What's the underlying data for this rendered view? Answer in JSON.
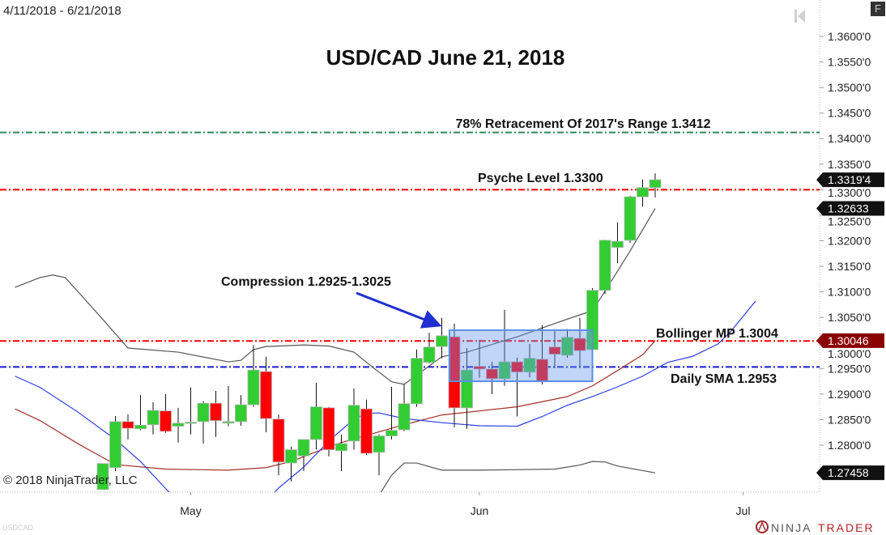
{
  "header": {
    "date_range": "4/11/2018 - 6/21/2018",
    "f_button": "F",
    "instrument_watermark": "USDCAD"
  },
  "footer": {
    "copyright": "© 2018 NinjaTrader, LLC",
    "logo_text_left": "NINJA",
    "logo_text_right": "TRADER"
  },
  "chart_data": {
    "type": "candlestick",
    "title": "USD/CAD June 21, 2018",
    "x_start_date": "2018-04-11",
    "x_tick_labels": [
      {
        "date": "2018-05-01",
        "label": "May"
      },
      {
        "date": "2018-06-01",
        "label": "Jun"
      },
      {
        "date": "2018-07-02",
        "label": "Jul"
      }
    ],
    "ylim": [
      1.27,
      1.365
    ],
    "y_ticks": [
      {
        "value": 1.36,
        "label": "1.3600'0"
      },
      {
        "value": 1.355,
        "label": "1.3550'0"
      },
      {
        "value": 1.35,
        "label": "1.3500'0"
      },
      {
        "value": 1.345,
        "label": "1.3450'0"
      },
      {
        "value": 1.34,
        "label": "1.3400'0"
      },
      {
        "value": 1.335,
        "label": "1.3350'0"
      },
      {
        "value": 1.33,
        "label": "1.3300'0"
      },
      {
        "value": 1.325,
        "label": "1.3250'0"
      },
      {
        "value": 1.32,
        "label": "1.3200'0"
      },
      {
        "value": 1.315,
        "label": "1.3150'0"
      },
      {
        "value": 1.31,
        "label": "1.3100'0"
      },
      {
        "value": 1.305,
        "label": "1.3050'0"
      },
      {
        "value": 1.3,
        "label": "1.3000'0"
      },
      {
        "value": 1.295,
        "label": "1.2950'0"
      },
      {
        "value": 1.29,
        "label": "1.2900'0"
      },
      {
        "value": 1.285,
        "label": "1.2850'0"
      },
      {
        "value": 1.28,
        "label": "1.2800'0"
      }
    ],
    "colors": {
      "up": "#32cd32",
      "down": "#ff0000",
      "box_fill": "#6495ed",
      "box_stroke": "#5b8fe6"
    },
    "candle_columns": [
      "date",
      "open",
      "high",
      "low",
      "close"
    ],
    "candles": [
      [
        "2018-04-20",
        1.2713,
        1.2764,
        1.2713,
        1.2764
      ],
      [
        "2018-04-23",
        1.2756,
        1.2857,
        1.2749,
        1.2846
      ],
      [
        "2018-04-24",
        1.2846,
        1.286,
        1.2811,
        1.2833
      ],
      [
        "2018-04-25",
        1.2832,
        1.2898,
        1.2829,
        1.2839
      ],
      [
        "2018-04-26",
        1.284,
        1.2884,
        1.2821,
        1.2868
      ],
      [
        "2018-04-27",
        1.2867,
        1.29,
        1.2824,
        1.2827
      ],
      [
        "2018-04-30",
        1.2837,
        1.2873,
        1.2805,
        1.2843
      ],
      [
        "2018-05-01",
        1.2843,
        1.2913,
        1.2821,
        1.2845
      ],
      [
        "2018-05-02",
        1.2846,
        1.2886,
        1.2803,
        1.2882
      ],
      [
        "2018-05-03",
        1.2882,
        1.2906,
        1.2816,
        1.2848
      ],
      [
        "2018-05-04",
        1.2843,
        1.2916,
        1.2837,
        1.2846
      ],
      [
        "2018-05-07",
        1.2846,
        1.2898,
        1.2838,
        1.2879
      ],
      [
        "2018-05-08",
        1.2879,
        1.2996,
        1.2875,
        1.2947
      ],
      [
        "2018-05-09",
        1.2944,
        1.2973,
        1.2825,
        1.2852
      ],
      [
        "2018-05-10",
        1.2851,
        1.286,
        1.2741,
        1.2767
      ],
      [
        "2018-05-11",
        1.2765,
        1.2797,
        1.2729,
        1.2791
      ],
      [
        "2018-05-14",
        1.2779,
        1.2811,
        1.2749,
        1.2811
      ],
      [
        "2018-05-15",
        1.2811,
        1.2922,
        1.2791,
        1.2875
      ],
      [
        "2018-05-16",
        1.2873,
        1.2875,
        1.2778,
        1.2791
      ],
      [
        "2018-05-17",
        1.2789,
        1.2821,
        1.2749,
        1.2803
      ],
      [
        "2018-05-18",
        1.2808,
        1.2911,
        1.2791,
        1.2878
      ],
      [
        "2018-05-21",
        1.2871,
        1.2889,
        1.2781,
        1.2784
      ],
      [
        "2018-05-22",
        1.2786,
        1.2821,
        1.2741,
        1.2818
      ],
      [
        "2018-05-23",
        1.2818,
        1.2914,
        1.2811,
        1.2829
      ],
      [
        "2018-05-24",
        1.283,
        1.2919,
        1.2827,
        1.2881
      ],
      [
        "2018-05-25",
        1.2881,
        1.2987,
        1.2875,
        1.297
      ],
      [
        "2018-05-28",
        1.2962,
        1.302,
        1.296,
        1.2992
      ],
      [
        "2018-05-29",
        1.2993,
        1.3049,
        1.297,
        1.3014
      ],
      [
        "2018-05-30",
        1.3012,
        1.3038,
        1.2835,
        1.2873
      ],
      [
        "2018-05-31",
        1.2873,
        1.299,
        1.2832,
        1.2947
      ],
      [
        "2018-06-01",
        1.2954,
        1.3006,
        1.2932,
        1.2949
      ],
      [
        "2018-06-04",
        1.2949,
        1.2963,
        1.29,
        1.293
      ],
      [
        "2018-06-05",
        1.293,
        1.3065,
        1.2916,
        1.2963
      ],
      [
        "2018-06-06",
        1.2963,
        1.2971,
        1.2856,
        1.2943
      ],
      [
        "2018-06-07",
        1.2943,
        1.2998,
        1.2933,
        1.297
      ],
      [
        "2018-06-08",
        1.2968,
        1.3035,
        1.2919,
        1.2925
      ],
      [
        "2018-06-11",
        1.2992,
        1.3027,
        1.2951,
        1.2978
      ],
      [
        "2018-06-12",
        1.2976,
        1.3027,
        1.2971,
        1.3011
      ],
      [
        "2018-06-13",
        1.3009,
        1.3049,
        1.2951,
        1.2985
      ],
      [
        "2018-06-14",
        1.2987,
        1.3107,
        1.2985,
        1.3103
      ],
      [
        "2018-06-15",
        1.3103,
        1.3202,
        1.3096,
        1.3201
      ],
      [
        "2018-06-18",
        1.3187,
        1.3236,
        1.3156,
        1.3199
      ],
      [
        "2018-06-19",
        1.3201,
        1.3288,
        1.3196,
        1.3286
      ],
      [
        "2018-06-20",
        1.3286,
        1.332,
        1.3267,
        1.3304
      ],
      [
        "2018-06-21",
        1.3304,
        1.3332,
        1.3285,
        1.33194
      ]
    ],
    "lines": [
      {
        "color": "#555555",
        "width": 1.2,
        "points": [
          [
            "2018-04-11",
            1.3109
          ],
          [
            "2018-04-13",
            1.3128
          ],
          [
            "2018-04-16",
            1.3133
          ],
          [
            "2018-04-17",
            1.3128
          ],
          [
            "2018-04-18",
            1.3101
          ],
          [
            "2018-04-20",
            1.3046
          ],
          [
            "2018-04-24",
            1.299
          ],
          [
            "2018-04-30",
            1.2982
          ],
          [
            "2018-05-04",
            1.2963
          ],
          [
            "2018-05-07",
            1.2966
          ],
          [
            "2018-05-08",
            1.2987
          ],
          [
            "2018-05-09",
            1.2993
          ],
          [
            "2018-05-14",
            1.2996
          ],
          [
            "2018-05-16",
            1.2994
          ],
          [
            "2018-05-18",
            1.2982
          ],
          [
            "2018-05-21",
            1.2962
          ],
          [
            "2018-05-22",
            1.2943
          ],
          [
            "2018-05-23",
            1.2924
          ],
          [
            "2018-05-24",
            1.2919
          ],
          [
            "2018-05-29",
            1.2973
          ],
          [
            "2018-05-31",
            1.2982
          ],
          [
            "2018-06-06",
            1.3012
          ],
          [
            "2018-06-11",
            1.3038
          ],
          [
            "2018-06-13",
            1.3055
          ],
          [
            "2018-06-14",
            1.3063
          ],
          [
            "2018-06-15",
            1.3101
          ],
          [
            "2018-06-19",
            1.318
          ],
          [
            "2018-06-21",
            1.32633
          ]
        ]
      },
      {
        "color": "#555555",
        "width": 1.2,
        "points": [
          [
            "2018-05-22",
            1.2702
          ],
          [
            "2018-05-23",
            1.2741
          ],
          [
            "2018-05-24",
            1.2765
          ],
          [
            "2018-05-25",
            1.2765
          ],
          [
            "2018-05-29",
            1.2751
          ],
          [
            "2018-06-01",
            1.2751
          ],
          [
            "2018-06-11",
            1.2753
          ],
          [
            "2018-06-13",
            1.2761
          ],
          [
            "2018-06-14",
            1.2768
          ],
          [
            "2018-06-15",
            1.2767
          ],
          [
            "2018-06-18",
            1.2759
          ],
          [
            "2018-06-21",
            1.27458
          ]
        ]
      },
      {
        "color": "#a0302a",
        "width": 1.2,
        "points": [
          [
            "2018-04-11",
            1.2871
          ],
          [
            "2018-04-13",
            1.2848
          ],
          [
            "2018-04-18",
            1.2803
          ],
          [
            "2018-04-23",
            1.2762
          ],
          [
            "2018-04-27",
            1.2753
          ],
          [
            "2018-05-04",
            1.2751
          ],
          [
            "2018-05-09",
            1.2756
          ],
          [
            "2018-05-11",
            1.2768
          ],
          [
            "2018-05-15",
            1.2787
          ],
          [
            "2018-05-17",
            1.2805
          ],
          [
            "2018-05-21",
            1.2819
          ],
          [
            "2018-05-24",
            1.284
          ],
          [
            "2018-05-29",
            1.2859
          ],
          [
            "2018-06-06",
            1.2875
          ],
          [
            "2018-06-12",
            1.2895
          ],
          [
            "2018-06-14",
            1.2916
          ],
          [
            "2018-06-18",
            1.2946
          ],
          [
            "2018-06-20",
            1.2977
          ],
          [
            "2018-06-21",
            1.30046
          ]
        ]
      },
      {
        "color": "#2b3fe0",
        "width": 1.2,
        "points": [
          [
            "2018-04-11",
            1.2935
          ],
          [
            "2018-04-13",
            1.2913
          ],
          [
            "2018-04-18",
            1.2865
          ],
          [
            "2018-04-23",
            1.2811
          ],
          [
            "2018-04-25",
            1.2768
          ],
          [
            "2018-04-27",
            1.2715
          ],
          [
            "2018-04-30",
            1.269
          ],
          [
            "2018-05-09",
            1.269
          ],
          [
            "2018-05-10",
            1.2716
          ],
          [
            "2018-05-14",
            1.2757
          ],
          [
            "2018-05-16",
            1.2808
          ],
          [
            "2018-05-18",
            1.2851
          ],
          [
            "2018-05-21",
            1.2862
          ],
          [
            "2018-05-22",
            1.2863
          ],
          [
            "2018-05-24",
            1.2852
          ],
          [
            "2018-05-29",
            1.2844
          ],
          [
            "2018-06-01",
            1.2838
          ],
          [
            "2018-06-06",
            1.2837
          ],
          [
            "2018-06-08",
            1.2856
          ],
          [
            "2018-06-12",
            1.2878
          ],
          [
            "2018-06-14",
            1.2895
          ],
          [
            "2018-06-18",
            1.2914
          ],
          [
            "2018-06-20",
            1.2935
          ],
          [
            "2018-06-22",
            1.2962
          ],
          [
            "2018-06-26",
            1.2974
          ],
          [
            "2018-06-28",
            1.2998
          ],
          [
            "2018-06-29",
            1.3022
          ],
          [
            "2018-07-03",
            1.3082
          ]
        ]
      }
    ],
    "horizontal_levels": [
      {
        "value": 1.3412,
        "color": "#2e8b57",
        "label": "78% Retracement Of 2017's Range 1.3412"
      },
      {
        "value": 1.33,
        "color": "#ff0000",
        "label": "Psyche Level 1.3300"
      },
      {
        "value": 1.3004,
        "color": "#ff0000",
        "label": "Bollinger MP 1.3004"
      },
      {
        "value": 1.2953,
        "color": "#1a1acd",
        "label": "Daily SMA 1.2953"
      }
    ],
    "compression_box": {
      "start": "2018-05-30",
      "end": "2018-06-14",
      "low": 1.2925,
      "high": 1.3025,
      "label": "Compression 1.2925-1.3025",
      "arrow_color": "#1f2fd0"
    },
    "price_tags": [
      {
        "value": 1.33194,
        "label": "1.3319'4",
        "color": "#111111"
      },
      {
        "value": 1.32633,
        "label": "1.32633",
        "color": "#111111"
      },
      {
        "value": 1.30046,
        "label": "1.30046",
        "color": "#8b0000"
      },
      {
        "value": 1.27458,
        "label": "1.27458",
        "color": "#111111"
      }
    ]
  }
}
